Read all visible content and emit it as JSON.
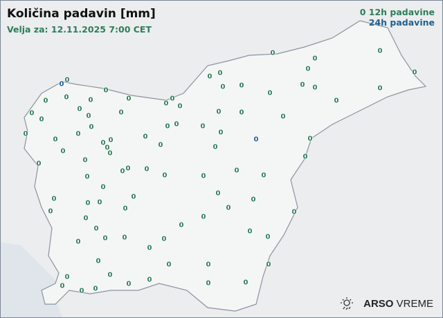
{
  "title": "Količina padavin [mm]",
  "subtitle": "Velja za: 12.11.2025 7:00 CET",
  "legend": {
    "marker": "0",
    "item_12h": "12h padavine",
    "item_24h": "24h padavine"
  },
  "colors": {
    "12h": "#2e7d5b",
    "24h": "#1f5f8f",
    "land": "#eceeef",
    "sea": "#dfe5ea",
    "border": "#8a93a0"
  },
  "logo": {
    "brand": "ARSO",
    "product": "VREME",
    "icon": "sun-rain-icon"
  },
  "stations": [
    {
      "v": "0",
      "t": "12h"
    },
    {
      "v": "0",
      "t": "12h"
    },
    {
      "v": "0",
      "t": "12h"
    },
    {
      "v": "0",
      "t": "12h"
    },
    {
      "v": "0",
      "t": "12h"
    },
    {
      "v": "0",
      "t": "12h"
    },
    {
      "v": "0",
      "t": "12h"
    },
    {
      "v": "0",
      "t": "12h"
    },
    {
      "v": "0",
      "t": "24h"
    },
    {
      "v": "0",
      "t": "12h"
    },
    {
      "v": "0",
      "t": "12h"
    },
    {
      "v": "0",
      "t": "12h"
    },
    {
      "v": "0",
      "t": "12h"
    },
    {
      "v": "0",
      "t": "12h"
    },
    {
      "v": "0",
      "t": "12h"
    },
    {
      "v": "0",
      "t": "12h"
    },
    {
      "v": "0",
      "t": "12h"
    },
    {
      "v": "0",
      "t": "12h"
    },
    {
      "v": "0",
      "t": "12h"
    },
    {
      "v": "0",
      "t": "12h"
    },
    {
      "v": "0",
      "t": "12h"
    },
    {
      "v": "0",
      "t": "12h"
    },
    {
      "v": "0",
      "t": "12h"
    },
    {
      "v": "0",
      "t": "12h"
    },
    {
      "v": "0",
      "t": "12h"
    },
    {
      "v": "0",
      "t": "12h"
    },
    {
      "v": "0",
      "t": "12h"
    },
    {
      "v": "0",
      "t": "12h"
    },
    {
      "v": "0",
      "t": "12h"
    },
    {
      "v": "0",
      "t": "12h"
    },
    {
      "v": "0",
      "t": "12h"
    },
    {
      "v": "0",
      "t": "12h"
    },
    {
      "v": "0",
      "t": "12h"
    },
    {
      "v": "0",
      "t": "12h"
    },
    {
      "v": "0",
      "t": "12h"
    },
    {
      "v": "0",
      "t": "12h"
    },
    {
      "v": "0",
      "t": "12h"
    },
    {
      "v": "0",
      "t": "12h"
    },
    {
      "v": "0",
      "t": "12h"
    },
    {
      "v": "0",
      "t": "12h"
    },
    {
      "v": "0",
      "t": "12h"
    },
    {
      "v": "0",
      "t": "12h"
    },
    {
      "v": "0",
      "t": "12h"
    },
    {
      "v": "0",
      "t": "12h"
    },
    {
      "v": "0",
      "t": "12h"
    },
    {
      "v": "0",
      "t": "12h"
    },
    {
      "v": "0",
      "t": "12h"
    },
    {
      "v": "0",
      "t": "12h"
    },
    {
      "v": "0",
      "t": "24h"
    },
    {
      "v": "0",
      "t": "12h"
    },
    {
      "v": "0",
      "t": "12h"
    },
    {
      "v": "0",
      "t": "12h"
    },
    {
      "v": "0",
      "t": "12h"
    },
    {
      "v": "0",
      "t": "12h"
    },
    {
      "v": "0",
      "t": "12h"
    },
    {
      "v": "0",
      "t": "12h"
    },
    {
      "v": "0",
      "t": "12h"
    },
    {
      "v": "0",
      "t": "12h"
    },
    {
      "v": "0",
      "t": "12h"
    },
    {
      "v": "0",
      "t": "12h"
    },
    {
      "v": "0",
      "t": "12h"
    },
    {
      "v": "0",
      "t": "12h"
    },
    {
      "v": "0",
      "t": "12h"
    },
    {
      "v": "0",
      "t": "12h"
    },
    {
      "v": "0",
      "t": "12h"
    },
    {
      "v": "0",
      "t": "12h"
    },
    {
      "v": "0",
      "t": "12h"
    },
    {
      "v": "0",
      "t": "12h"
    },
    {
      "v": "0",
      "t": "12h"
    },
    {
      "v": "0",
      "t": "12h"
    },
    {
      "v": "0",
      "t": "12h"
    },
    {
      "v": "0",
      "t": "12h"
    },
    {
      "v": "0",
      "t": "12h"
    },
    {
      "v": "0",
      "t": "12h"
    },
    {
      "v": "0",
      "t": "12h"
    },
    {
      "v": "0",
      "t": "12h"
    },
    {
      "v": "0",
      "t": "12h"
    },
    {
      "v": "0",
      "t": "12h"
    },
    {
      "v": "0",
      "t": "12h"
    },
    {
      "v": "0",
      "t": "12h"
    },
    {
      "v": "0",
      "t": "12h"
    },
    {
      "v": "0",
      "t": "12h"
    },
    {
      "v": "0",
      "t": "12h"
    },
    {
      "v": "0",
      "t": "12h"
    },
    {
      "v": "0",
      "t": "12h"
    },
    {
      "v": "0",
      "t": "12h"
    },
    {
      "v": "0",
      "t": "12h"
    },
    {
      "v": "0",
      "t": "12h"
    },
    {
      "v": "0",
      "t": "12h"
    },
    {
      "v": "0",
      "t": "12h"
    },
    {
      "v": "0",
      "t": "12h"
    },
    {
      "v": "0",
      "t": "12h"
    },
    {
      "v": "0",
      "t": "12h"
    },
    {
      "v": "0",
      "t": "12h"
    },
    {
      "v": "0",
      "t": "12h"
    },
    {
      "v": "0",
      "t": "12h"
    }
  ]
}
